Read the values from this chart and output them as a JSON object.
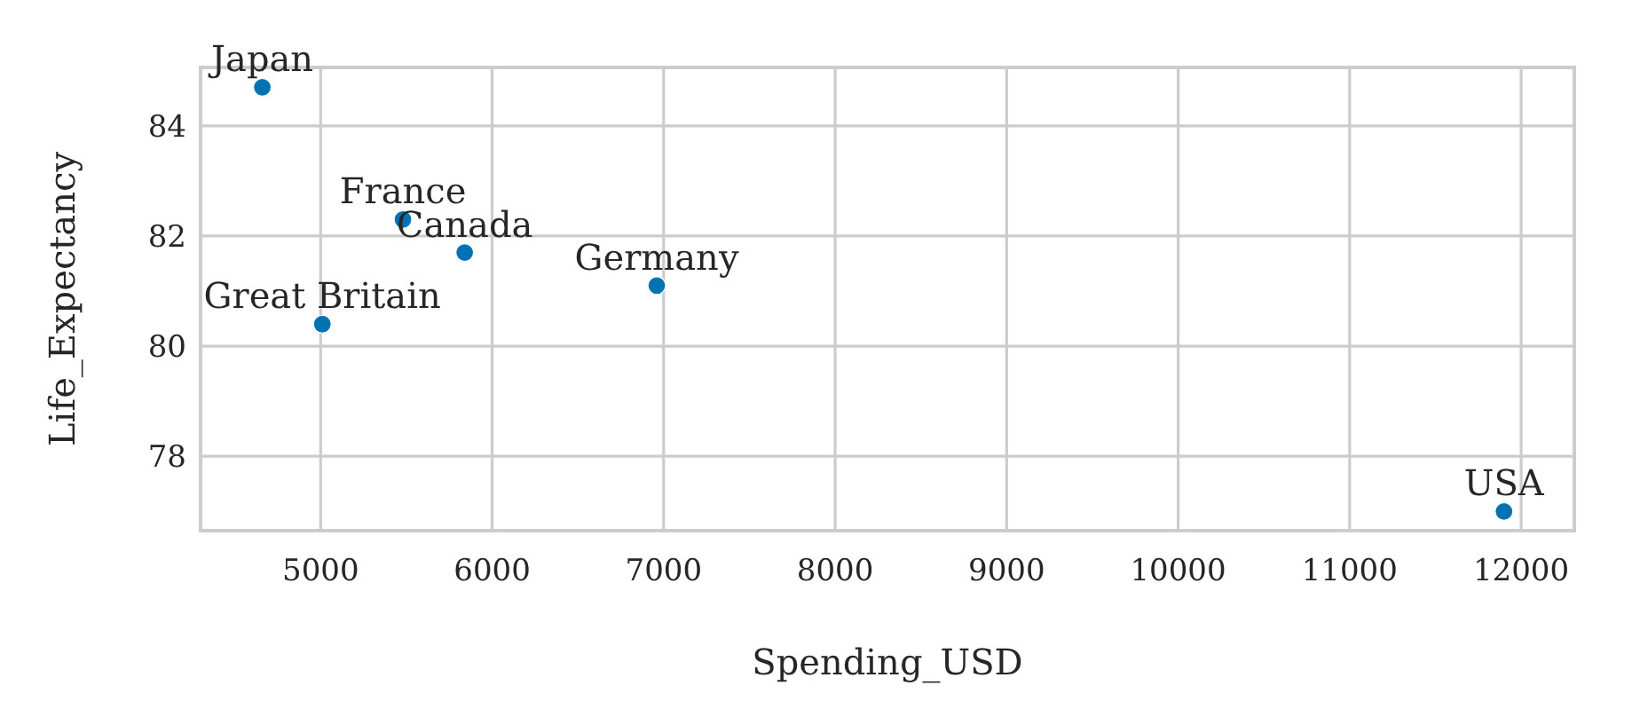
{
  "chart_data": {
    "type": "scatter",
    "xlabel": "Spending_USD",
    "ylabel": "Life_Expectancy",
    "x": [
      4660,
      5480,
      5840,
      6960,
      5010,
      11900
    ],
    "series": [
      {
        "color": "#0173b2",
        "values": [
          84.7,
          82.3,
          81.7,
          81.1,
          80.4,
          77.0
        ]
      }
    ],
    "xlim": [
      4300,
      12310
    ],
    "xticks": [
      5000,
      6000,
      7000,
      8000,
      9000,
      10000,
      11000,
      12000
    ],
    "ylim": [
      76.65,
      85.06
    ],
    "yticks": [
      78,
      80,
      82,
      84
    ],
    "grid": true,
    "marker": "circle",
    "annotations": [
      {
        "text": "Japan",
        "x": 4660,
        "y": 84.7
      },
      {
        "text": "France",
        "x": 5480,
        "y": 82.3
      },
      {
        "text": "Canada",
        "x": 5840,
        "y": 81.7
      },
      {
        "text": "Germany",
        "x": 6960,
        "y": 81.1
      },
      {
        "text": "Great Britain",
        "x": 5010,
        "y": 80.4
      },
      {
        "text": "USA",
        "x": 11900,
        "y": 77.0
      }
    ]
  }
}
